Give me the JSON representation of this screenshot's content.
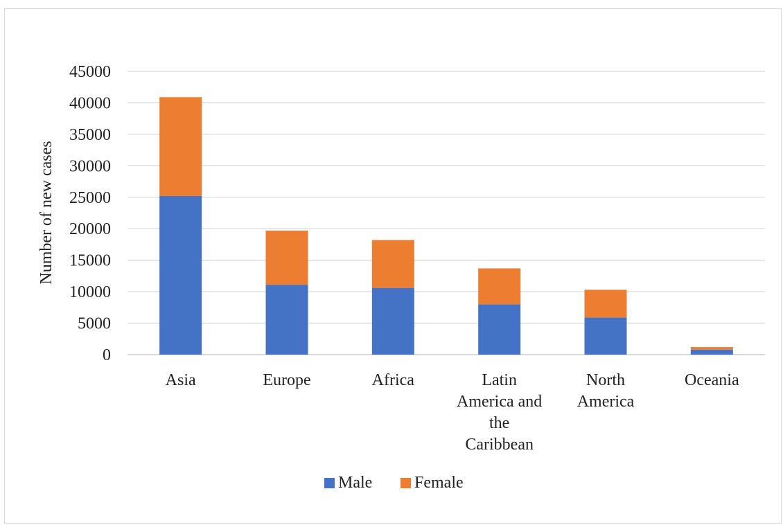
{
  "chart_data": {
    "type": "bar",
    "stacked": true,
    "title": "",
    "xlabel": "",
    "ylabel": "Number of new cases",
    "ylim": [
      0,
      45000
    ],
    "yticks": [
      0,
      5000,
      10000,
      15000,
      20000,
      25000,
      30000,
      35000,
      40000,
      45000
    ],
    "grid": true,
    "legend_position": "bottom",
    "categories": [
      "Asia",
      "Europe",
      "Africa",
      "Latin America and the Caribbean",
      "North America",
      "Oceania"
    ],
    "category_label_lines": [
      [
        "Asia"
      ],
      [
        "Europe"
      ],
      [
        "Africa"
      ],
      [
        "Latin",
        "America and",
        "the",
        "Caribbean"
      ],
      [
        "North",
        "America"
      ],
      [
        "Oceania"
      ]
    ],
    "series": [
      {
        "name": "Male",
        "color": "#4472C4",
        "values": [
          25200,
          11100,
          10600,
          8000,
          5900,
          800
        ]
      },
      {
        "name": "Female",
        "color": "#ED7D31",
        "values": [
          15700,
          8600,
          7600,
          5700,
          4400,
          400
        ]
      }
    ]
  }
}
